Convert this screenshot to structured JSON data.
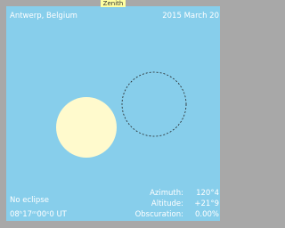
{
  "view": {
    "zenith": "Zenith",
    "location": "Antwerp, Belgium",
    "date": "2015 March 20",
    "status": "No eclipse",
    "time": "08ʰ17ᵐ00ˢ0 UT"
  },
  "readout": {
    "azimuth_label": "Azimuth:",
    "azimuth": "120°4",
    "altitude_label": "Altitude:",
    "altitude": "+21°9",
    "obscuration_label": "Obscuration:",
    "obscuration": "0.00%"
  }
}
